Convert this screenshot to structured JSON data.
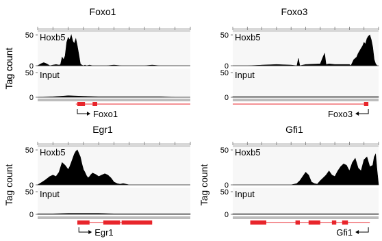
{
  "figure": {
    "ylabel": "Tag count",
    "track_labels": [
      "Hoxb5",
      "Input"
    ]
  },
  "chart_data": [
    {
      "type": "area",
      "title": "Foxo1",
      "ylabel": "Tag count",
      "ylim": [
        0,
        50
      ],
      "gene": {
        "label": "Foxo1",
        "strand": "+"
      },
      "series": [
        {
          "name": "Hoxb5",
          "x": [
            0,
            2,
            4,
            6,
            8,
            10,
            12,
            14,
            15,
            16,
            17,
            18,
            19,
            20,
            21,
            22,
            23,
            24,
            25,
            26,
            27,
            28,
            29,
            30,
            31,
            32,
            34,
            36,
            40,
            45,
            50,
            55,
            60,
            65,
            70,
            75,
            80,
            85,
            90,
            95,
            100
          ],
          "values": [
            0,
            3,
            5,
            3,
            0,
            1,
            2,
            1,
            2,
            14,
            10,
            16,
            38,
            46,
            42,
            50,
            40,
            36,
            44,
            32,
            18,
            3,
            1,
            0,
            1,
            0,
            1,
            0,
            0,
            0,
            1,
            0,
            0,
            0,
            0,
            1,
            0,
            0,
            0,
            0,
            0
          ]
        },
        {
          "name": "Input",
          "x": [
            0,
            10,
            20,
            30,
            40,
            50,
            60,
            70,
            80,
            90,
            100
          ],
          "values": [
            0,
            1,
            3,
            2,
            1,
            1,
            1,
            1,
            1,
            0,
            0
          ]
        }
      ]
    },
    {
      "type": "area",
      "title": "Foxo3",
      "ylabel": "Tag count",
      "ylim": [
        0,
        50
      ],
      "gene": {
        "label": "Foxo3",
        "strand": "-"
      },
      "series": [
        {
          "name": "Hoxb5",
          "x": [
            0,
            10,
            20,
            30,
            40,
            44,
            45,
            46,
            50,
            60,
            62,
            63,
            64,
            66,
            70,
            75,
            80,
            81,
            82,
            83,
            84,
            85,
            86,
            87,
            88,
            89,
            90,
            91,
            92,
            93,
            94,
            95,
            96,
            97,
            98,
            99,
            100
          ],
          "values": [
            0,
            0,
            1,
            2,
            1,
            0,
            12,
            0,
            2,
            3,
            15,
            20,
            2,
            3,
            2,
            2,
            2,
            0,
            5,
            10,
            12,
            14,
            20,
            24,
            28,
            32,
            38,
            35,
            44,
            48,
            50,
            42,
            30,
            10,
            3,
            0,
            0
          ]
        },
        {
          "name": "Input",
          "x": [
            0,
            10,
            20,
            30,
            40,
            50,
            60,
            70,
            80,
            90,
            100
          ],
          "values": [
            1,
            1,
            1,
            1,
            1,
            1,
            1,
            1,
            1,
            1,
            1
          ]
        }
      ]
    },
    {
      "type": "area",
      "title": "Egr1",
      "ylabel": "Tag count",
      "ylim": [
        0,
        50
      ],
      "gene": {
        "label": "Egr1",
        "strand": "+"
      },
      "series": [
        {
          "name": "Hoxb5",
          "x": [
            0,
            3,
            5,
            8,
            10,
            12,
            14,
            15,
            16,
            18,
            20,
            21,
            22,
            23,
            24,
            25,
            26,
            27,
            28,
            29,
            30,
            31,
            32,
            33,
            34,
            35,
            36,
            38,
            40,
            42,
            44,
            46,
            48,
            50,
            52,
            54,
            56,
            58,
            60,
            65,
            70,
            75,
            80,
            90,
            100
          ],
          "values": [
            0,
            4,
            7,
            12,
            14,
            12,
            18,
            25,
            32,
            28,
            22,
            26,
            32,
            38,
            44,
            48,
            50,
            45,
            40,
            30,
            22,
            18,
            13,
            10,
            12,
            15,
            17,
            15,
            12,
            14,
            16,
            14,
            10,
            4,
            2,
            1,
            2,
            1,
            0,
            0,
            0,
            0,
            0,
            0,
            0
          ]
        },
        {
          "name": "Input",
          "x": [
            0,
            10,
            20,
            30,
            40,
            50,
            60,
            70,
            80,
            90,
            100
          ],
          "values": [
            1,
            1,
            2,
            2,
            2,
            1,
            1,
            1,
            1,
            1,
            1
          ]
        }
      ]
    },
    {
      "type": "area",
      "title": "Gfi1",
      "ylabel": "Tag count",
      "ylim": [
        0,
        50
      ],
      "gene": {
        "label": "Gfi1",
        "strand": "-"
      },
      "series": [
        {
          "name": "Hoxb5",
          "x": [
            0,
            10,
            20,
            30,
            40,
            44,
            46,
            48,
            50,
            52,
            54,
            56,
            58,
            60,
            62,
            64,
            66,
            68,
            70,
            72,
            74,
            76,
            78,
            80,
            82,
            84,
            86,
            88,
            90,
            92,
            94,
            96,
            97,
            98,
            99,
            100
          ],
          "values": [
            0,
            0,
            0,
            0,
            0,
            2,
            6,
            12,
            18,
            14,
            4,
            2,
            1,
            6,
            10,
            14,
            20,
            14,
            12,
            20,
            26,
            30,
            28,
            20,
            32,
            38,
            24,
            20,
            36,
            40,
            26,
            28,
            40,
            44,
            20,
            0
          ]
        },
        {
          "name": "Input",
          "x": [
            0,
            10,
            20,
            30,
            40,
            50,
            60,
            70,
            80,
            90,
            100
          ],
          "values": [
            1,
            1,
            1,
            1,
            1,
            1,
            1,
            1,
            1,
            1,
            1
          ]
        }
      ]
    }
  ]
}
